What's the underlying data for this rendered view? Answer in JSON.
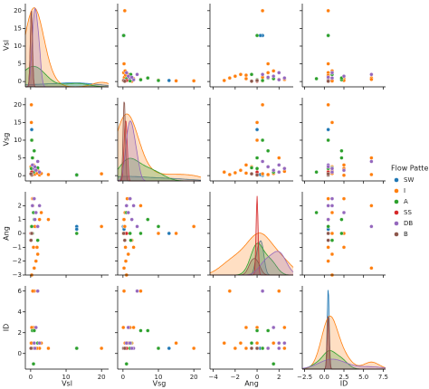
{
  "chart_data": {
    "type": "pairplot",
    "legend_title": "Flow Pattern",
    "variables": [
      {
        "name": "Vsl",
        "xlim": [
          -1.5,
          22
        ],
        "ylim": [
          -1.5,
          22
        ],
        "xticks": [
          0,
          10,
          20
        ],
        "yticks": [
          0,
          5,
          10,
          15,
          20
        ]
      },
      {
        "name": "Vsg",
        "xlim": [
          -1.5,
          22
        ],
        "ylim": [
          -1.5,
          22
        ],
        "xticks": [
          0,
          10,
          20
        ],
        "yticks": [
          0,
          5,
          10,
          15,
          20
        ]
      },
      {
        "name": "Ang",
        "xlim": [
          -4.3,
          3.3
        ],
        "ylim": [
          -3,
          3
        ],
        "xticks": [
          {
            "value": -4,
            "label": "−4"
          },
          {
            "value": -2,
            "label": "−2"
          },
          0,
          2
        ],
        "yticks": [
          {
            "value": -3,
            "label": "−3"
          },
          {
            "value": -2,
            "label": "−2"
          },
          {
            "value": -1,
            "label": "−1"
          },
          0,
          1,
          2
        ]
      },
      {
        "name": "ID",
        "xlim": [
          -2.8,
          7.8
        ],
        "ylim": [
          -1.5,
          6.5
        ],
        "xticks": [
          {
            "value": -2.5,
            "label": "−2.5"
          },
          {
            "value": 0,
            "label": "0.0"
          },
          {
            "value": 2.5,
            "label": "2.5"
          },
          {
            "value": 5,
            "label": "5.0"
          },
          {
            "value": 7.5,
            "label": "7.5"
          }
        ],
        "yticks": [
          0,
          2,
          4,
          6
        ]
      }
    ],
    "series": [
      {
        "name": "SW",
        "color": "#1f77b4",
        "data": [
          [
            13,
            13,
            0.3
          ],
          [
            0.1,
            0.3,
            13
          ],
          [
            0.5,
            0.3,
            0
          ],
          [
            0.5,
            0.5,
            0.5
          ]
        ]
      },
      {
        "name": "I",
        "color": "#ff7f0e",
        "data": [
          [
            0.1,
            0.3,
            0.5,
            1,
            1.5,
            2,
            0.2,
            0.8,
            2.5,
            3,
            0.4,
            0.6,
            1.2,
            20,
            0.1,
            0.3,
            0.7,
            1.8,
            0.2,
            5
          ],
          [
            0.5,
            1,
            2,
            0.3,
            0.8,
            1.5,
            20,
            3,
            0.2,
            0.6,
            10,
            5,
            0.4,
            0.5,
            2.5,
            0.1,
            1.2,
            0.7,
            15,
            0.3
          ],
          [
            0,
            -3,
            2.5,
            -2.5,
            -2,
            -1.5,
            0.5,
            -1,
            1,
            1.5,
            0,
            2,
            0.5,
            0.5,
            -0.5,
            0,
            2.5,
            -1,
            0,
            1
          ],
          [
            0.5,
            1,
            2.5,
            6,
            0.5,
            1,
            0.5,
            2.5,
            0.5,
            1,
            0.5,
            6,
            0.5,
            0.5,
            1,
            2.5,
            0.5,
            0.5,
            1,
            0.5
          ]
        ]
      },
      {
        "name": "A",
        "color": "#2ca02c",
        "data": [
          [
            0.2,
            0.5,
            1,
            0.3,
            2,
            0.8,
            13
          ],
          [
            2,
            5,
            7,
            10,
            2.2,
            1,
            0.2
          ],
          [
            0,
            0,
            1,
            0.5,
            -0.5,
            1.5,
            0
          ],
          [
            0.5,
            2.2,
            2.2,
            0.5,
            1,
            -1,
            0.5
          ]
        ]
      },
      {
        "name": "SS",
        "color": "#d62728",
        "data": [
          [
            0.1,
            0.3
          ],
          [
            0.5,
            1
          ],
          [
            0,
            0
          ],
          [
            0.5,
            0.5
          ]
        ]
      },
      {
        "name": "DB",
        "color": "#9467bd",
        "data": [
          [
            0.5,
            1,
            1.5,
            2,
            2.5,
            1.2
          ],
          [
            3,
            2,
            1.5,
            4,
            1,
            2.5
          ],
          [
            2,
            2.5,
            1.5,
            0.5,
            2,
            1
          ],
          [
            0.5,
            1,
            2.5,
            6,
            1,
            0.5
          ]
        ]
      },
      {
        "name": "B",
        "color": "#8c564b",
        "data": [
          [
            0.3,
            0.1
          ],
          [
            0.2,
            0.5
          ],
          [
            0,
            -0.5
          ],
          [
            0.5,
            0.5
          ]
        ]
      }
    ]
  }
}
